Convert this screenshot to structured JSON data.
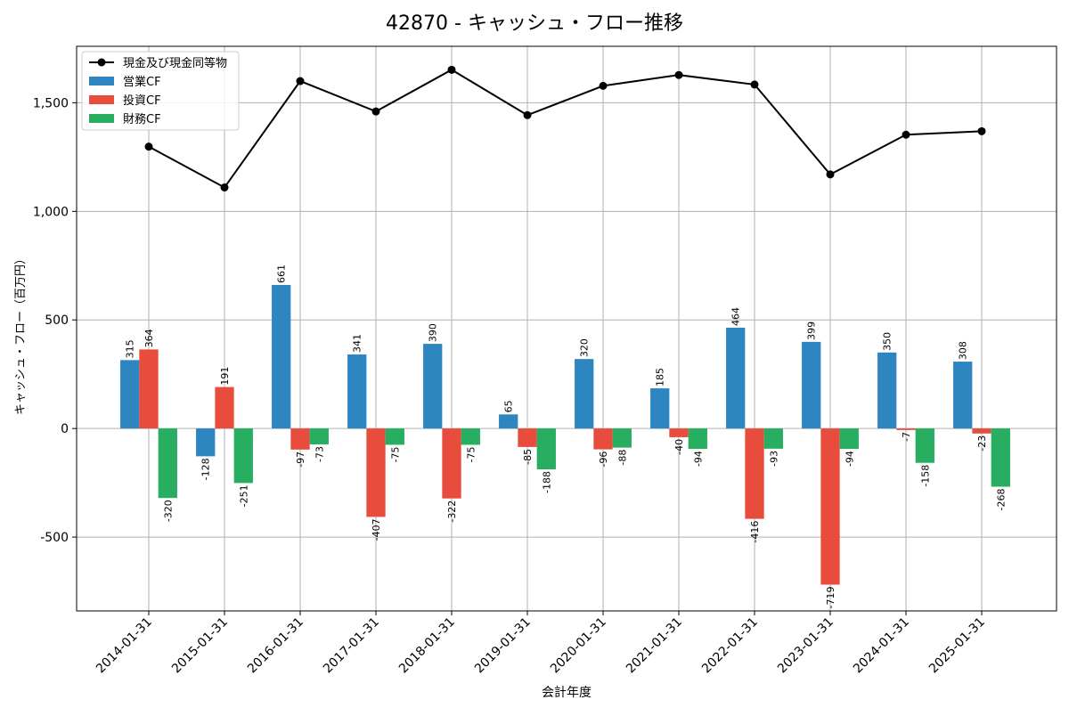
{
  "chart_data": {
    "type": "bar",
    "title": "42870 - キャッシュ・フロー推移",
    "xlabel": "会計年度",
    "ylabel": "キャッシュ・フロー（百万円）",
    "ylim": [
      -840,
      1760
    ],
    "yticks": [
      -500,
      0,
      500,
      1000,
      1500
    ],
    "ytick_labels": [
      "-500",
      "0",
      "500",
      "1,000",
      "1,500"
    ],
    "grid": true,
    "legend_position": "top-left",
    "categories": [
      "2014-01-31",
      "2015-01-31",
      "2016-01-31",
      "2017-01-31",
      "2018-01-31",
      "2019-01-31",
      "2020-01-31",
      "2021-01-31",
      "2022-01-31",
      "2023-01-31",
      "2024-01-31",
      "2025-01-31"
    ],
    "series": [
      {
        "name": "営業CF",
        "kind": "bar",
        "color": "#2e86c1",
        "values": [
          315,
          -128,
          661,
          341,
          390,
          65,
          320,
          185,
          464,
          399,
          350,
          308
        ]
      },
      {
        "name": "投資CF",
        "kind": "bar",
        "color": "#e74c3c",
        "values": [
          364,
          191,
          -97,
          -407,
          -322,
          -85,
          -96,
          -40,
          -416,
          -719,
          -7,
          -23
        ]
      },
      {
        "name": "財務CF",
        "kind": "bar",
        "color": "#27ae60",
        "values": [
          -320,
          -251,
          -73,
          -75,
          -75,
          -188,
          -88,
          -94,
          -93,
          -94,
          -158,
          -268
        ]
      },
      {
        "name": "現金及び現金同等物",
        "kind": "line",
        "color": "#000000",
        "values": [
          1298,
          1110,
          1600,
          1460,
          1652,
          1443,
          1578,
          1628,
          1584,
          1170,
          1353,
          1369
        ]
      }
    ],
    "legend_order": [
      "現金及び現金同等物",
      "営業CF",
      "投資CF",
      "財務CF"
    ]
  }
}
